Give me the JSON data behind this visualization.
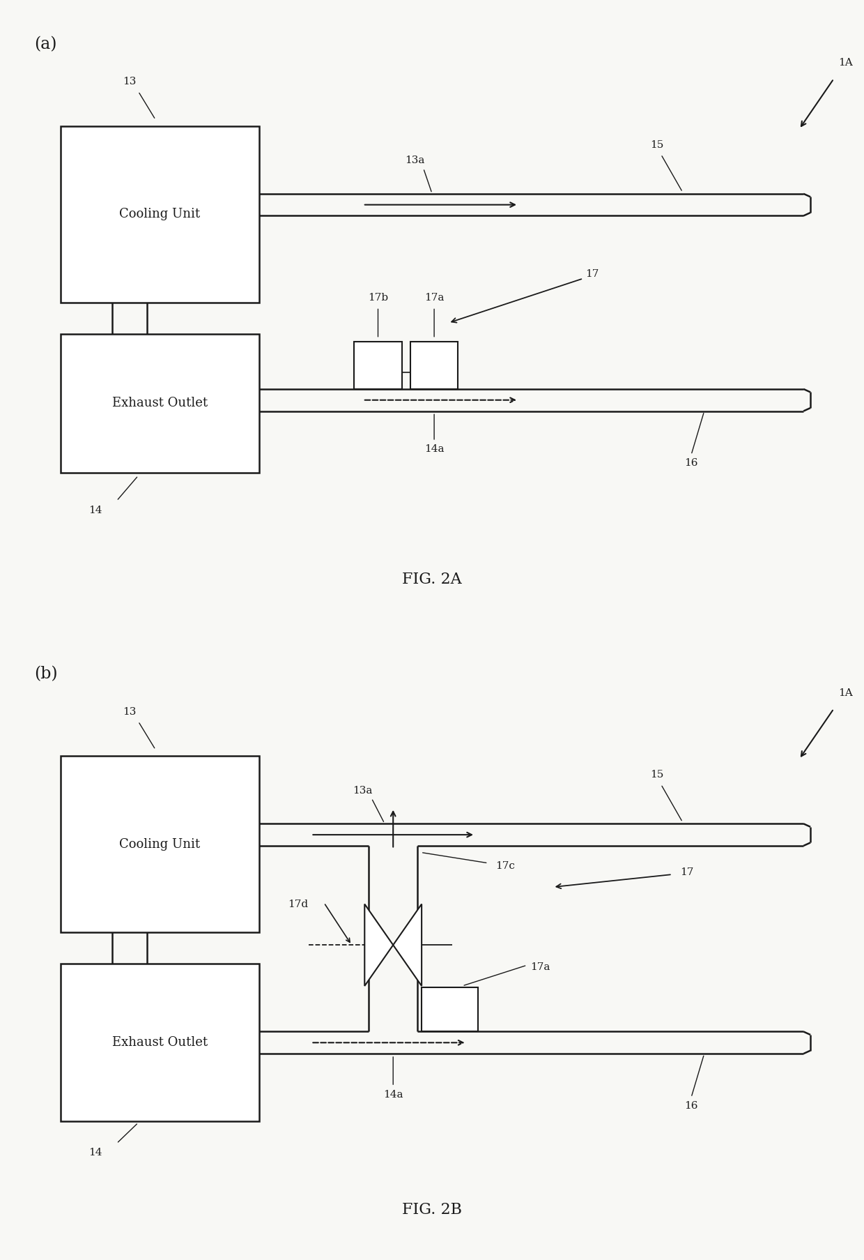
{
  "bg_color": "#f8f8f5",
  "line_color": "#1a1a1a",
  "fig_label_a": "(a)",
  "fig_label_b": "(b)",
  "fig_caption_a": "FIG. 2A",
  "fig_caption_b": "FIG. 2B",
  "label_1A": "1A",
  "label_13": "13",
  "label_14": "14",
  "label_15": "15",
  "label_16": "16",
  "label_13a": "13a",
  "label_14a": "14a",
  "label_17a": "17a",
  "label_17b": "17b",
  "label_17": "17",
  "label_17c": "17c",
  "label_17d": "17d",
  "text_cooling": "Cooling Unit",
  "text_exhaust": "Exhaust Outlet"
}
